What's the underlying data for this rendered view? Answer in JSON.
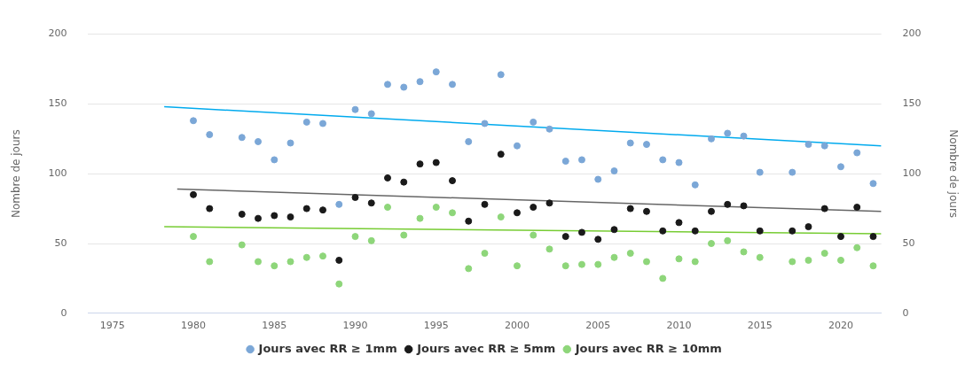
{
  "chart_data": {
    "type": "scatter",
    "ylabel": "Nombre de jours",
    "y2label": "Nombre de jours",
    "x": [
      1980,
      1981,
      1983,
      1984,
      1985,
      1986,
      1987,
      1988,
      1989,
      1990,
      1991,
      1992,
      1993,
      1994,
      1995,
      1996,
      1997,
      1998,
      1999,
      2000,
      2001,
      2002,
      2003,
      2004,
      2005,
      2006,
      2007,
      2008,
      2009,
      2010,
      2011,
      2012,
      2013,
      2014,
      2015,
      2017,
      2018,
      2019,
      2020,
      2021,
      2022
    ],
    "series": [
      {
        "name": "Jours avec RR ≥ 1mm",
        "color": "#7ba7d7",
        "marker": "circle",
        "values": [
          138,
          128,
          126,
          123,
          110,
          122,
          137,
          136,
          78,
          146,
          143,
          164,
          162,
          166,
          173,
          164,
          123,
          136,
          171,
          120,
          137,
          132,
          109,
          110,
          96,
          102,
          122,
          121,
          110,
          108,
          92,
          125,
          129,
          127,
          101,
          101,
          121,
          120,
          105,
          115,
          93
        ]
      },
      {
        "name": "Jours avec RR ≥ 5mm",
        "color": "#1a1a1a",
        "marker": "circle",
        "values": [
          85,
          75,
          71,
          68,
          70,
          69,
          75,
          74,
          38,
          83,
          79,
          97,
          94,
          107,
          108,
          95,
          66,
          78,
          114,
          72,
          76,
          79,
          55,
          58,
          53,
          60,
          75,
          73,
          59,
          65,
          59,
          73,
          78,
          77,
          59,
          59,
          62,
          75,
          55,
          76,
          55
        ]
      },
      {
        "name": "Jours avec RR ≥ 10mm",
        "color": "#8ed67a",
        "marker": "circle",
        "values": [
          55,
          37,
          49,
          37,
          34,
          37,
          40,
          41,
          21,
          55,
          52,
          76,
          56,
          68,
          76,
          72,
          32,
          43,
          69,
          34,
          56,
          46,
          34,
          35,
          35,
          40,
          43,
          37,
          25,
          39,
          37,
          50,
          52,
          44,
          40,
          37,
          38,
          43,
          38,
          47,
          34
        ]
      },
      {
        "type": "line",
        "marker": "none",
        "color": "#00aaee",
        "x": [
          1978.2,
          2022.5
        ],
        "values": [
          148,
          120
        ]
      },
      {
        "type": "line",
        "marker": "none",
        "color": "#666666",
        "x": [
          1979,
          2022.5
        ],
        "values": [
          89,
          73
        ]
      },
      {
        "type": "line",
        "marker": "none",
        "color": "#77cc33",
        "x": [
          1978.2,
          2022.5
        ],
        "values": [
          62,
          57
        ]
      }
    ],
    "xlim": [
      1973.5,
      2022.5
    ],
    "xticks": [
      1975,
      1980,
      1985,
      1990,
      1995,
      2000,
      2005,
      2010,
      2015,
      2020
    ],
    "ylim": [
      0,
      200
    ],
    "yticks": [
      0,
      50,
      100,
      150,
      200
    ],
    "y2lim": [
      0,
      200
    ],
    "y2ticks": [
      0,
      50,
      100,
      150,
      200
    ],
    "grid": "y",
    "legend": "bottom"
  }
}
